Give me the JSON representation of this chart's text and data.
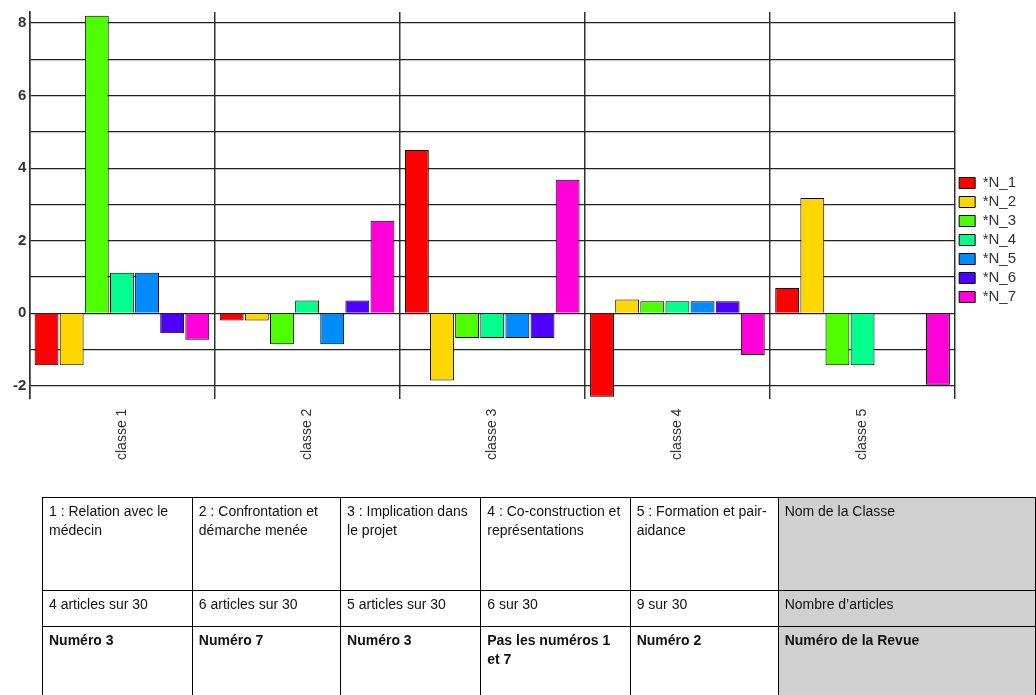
{
  "chart_data": {
    "type": "bar",
    "categories": [
      "classe 1",
      "classe 2",
      "classe 3",
      "classe 4",
      "classe 5"
    ],
    "series": [
      {
        "name": "*N_1",
        "color": "#ff0000",
        "values": [
          -1.43,
          -0.2,
          4.5,
          -2.3,
          0.7
        ]
      },
      {
        "name": "*N_2",
        "color": "#ffd700",
        "values": [
          -1.43,
          -0.2,
          -1.85,
          0.38,
          3.18
        ]
      },
      {
        "name": "*N_3",
        "color": "#4dff00",
        "values": [
          8.2,
          -0.85,
          -0.68,
          0.33,
          -1.43
        ]
      },
      {
        "name": "*N_4",
        "color": "#00ff8c",
        "values": [
          1.12,
          0.35,
          -0.68,
          0.33,
          -1.43
        ]
      },
      {
        "name": "*N_5",
        "color": "#008cff",
        "values": [
          1.12,
          -0.85,
          -0.68,
          0.33,
          0
        ]
      },
      {
        "name": "*N_6",
        "color": "#4d00ff",
        "values": [
          -0.55,
          0.35,
          -0.68,
          0.33,
          0
        ]
      },
      {
        "name": "*N_7",
        "color": "#ff00d9",
        "values": [
          -0.73,
          2.55,
          3.68,
          -1.15,
          -1.97
        ]
      }
    ],
    "ylim": [
      -2.35,
      8.3
    ],
    "yticks": [
      {
        "value": -2,
        "label": "-2"
      },
      {
        "value": -1,
        "label": null
      },
      {
        "value": 0,
        "label": "0"
      },
      {
        "value": 1,
        "label": null
      },
      {
        "value": 2,
        "label": "2"
      },
      {
        "value": 3,
        "label": null
      },
      {
        "value": 4,
        "label": "4"
      },
      {
        "value": 5,
        "label": null
      },
      {
        "value": 6,
        "label": "6"
      },
      {
        "value": 7,
        "label": null
      },
      {
        "value": 8,
        "label": "8"
      }
    ],
    "grid": true,
    "legend": "right",
    "annotations": [
      "1 : Relation avec le médecin",
      "2 : Confrontation et démarche menée",
      "3 : Implication dans le projet",
      "4 : Co-construction et représentations",
      "5 : Formation et pair-aidance",
      "Nom de la Classe",
      "4 articles sur 30",
      "6 articles sur 30",
      "5 articles sur 30",
      "6 sur 30",
      "9 sur 30",
      "Nombre d’articles",
      "Numéro 3",
      "Numéro 7",
      "Numéro 3",
      "Pas les numéros 1 et 7",
      "Numéro 2",
      "Numéro de la Revue"
    ]
  }
}
